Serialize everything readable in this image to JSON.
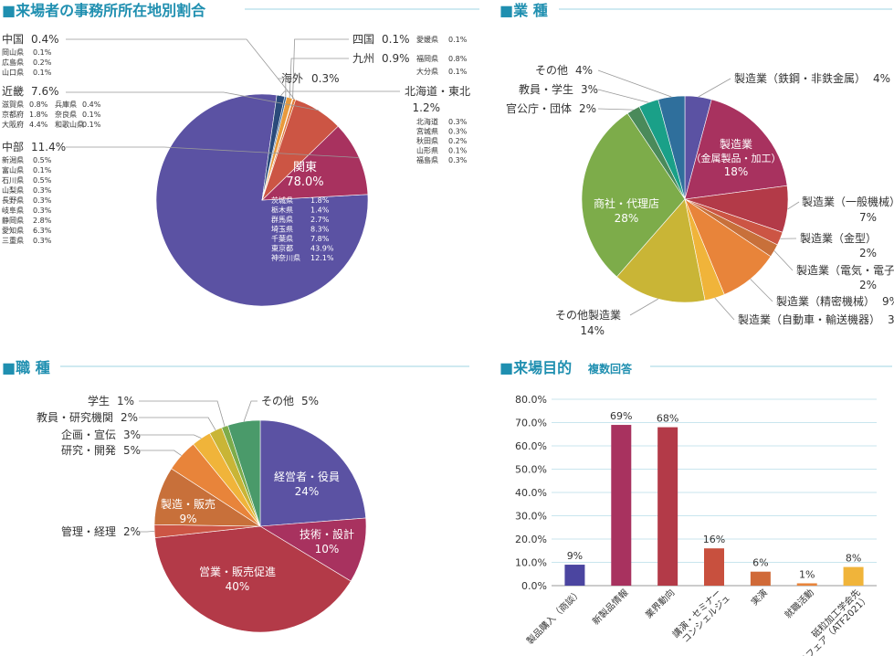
{
  "colors": {
    "accent": "#1f8fb0",
    "rule": "#9fd6e3",
    "text": "#333333"
  },
  "sections": {
    "region": "■来場者の事務所所在地別割合",
    "industry": "■業 種",
    "job": "■職 種",
    "purpose": "■来場目的",
    "purpose_note": "複数回答"
  },
  "chart_data": [
    {
      "id": "region",
      "type": "pie",
      "title": "■来場者の事務所所在地別割合",
      "slices": [
        {
          "label": "関東",
          "value": 78.0,
          "display": "78.0%",
          "color": "#5b52a3",
          "breakdown": [
            {
              "name": "茨城県",
              "value": "1.8%"
            },
            {
              "name": "栃木県",
              "value": "1.4%"
            },
            {
              "name": "群馬県",
              "value": "2.7%"
            },
            {
              "name": "埼玉県",
              "value": "8.3%"
            },
            {
              "name": "千葉県",
              "value": "7.8%"
            },
            {
              "name": "東京都",
              "value": "43.9%"
            },
            {
              "name": "神奈川県",
              "value": "12.1%"
            }
          ]
        },
        {
          "label": "中部",
          "value": 11.4,
          "display": "11.4%",
          "color": "#a8325f",
          "breakdown": [
            {
              "name": "新潟県",
              "value": "0.5%"
            },
            {
              "name": "富山県",
              "value": "0.1%"
            },
            {
              "name": "石川県",
              "value": "0.5%"
            },
            {
              "name": "山梨県",
              "value": "0.3%"
            },
            {
              "name": "長野県",
              "value": "0.3%"
            },
            {
              "name": "岐阜県",
              "value": "0.3%"
            },
            {
              "name": "静岡県",
              "value": "2.8%"
            },
            {
              "name": "愛知県",
              "value": "6.3%"
            },
            {
              "name": "三重県",
              "value": "0.3%"
            }
          ]
        },
        {
          "label": "近畿",
          "value": 7.6,
          "display": "7.6%",
          "color": "#cc5544",
          "breakdown": [
            {
              "name": "滋賀県",
              "value": "0.8%"
            },
            {
              "name": "兵庫県",
              "value": "0.4%"
            },
            {
              "name": "京都府",
              "value": "1.8%"
            },
            {
              "name": "奈良県",
              "value": "0.1%"
            },
            {
              "name": "大阪府",
              "value": "4.4%"
            },
            {
              "name": "和歌山県",
              "value": "0.1%"
            }
          ]
        },
        {
          "label": "中国",
          "value": 0.4,
          "display": "0.4%",
          "color": "#e07a3a",
          "breakdown": [
            {
              "name": "岡山県",
              "value": "0.1%"
            },
            {
              "name": "広島県",
              "value": "0.2%"
            },
            {
              "name": "山口県",
              "value": "0.1%"
            }
          ]
        },
        {
          "label": "四国",
          "value": 0.1,
          "display": "0.1%",
          "color": "#f0b43a",
          "breakdown": [
            {
              "name": "愛媛県",
              "value": "0.1%"
            }
          ]
        },
        {
          "label": "九州",
          "value": 0.9,
          "display": "0.9%",
          "color": "#e89a3c",
          "breakdown": [
            {
              "name": "福岡県",
              "value": "0.8%"
            },
            {
              "name": "大分県",
              "value": "0.1%"
            }
          ]
        },
        {
          "label": "海外",
          "value": 0.3,
          "display": "0.3%",
          "color": "#3a6a9a",
          "breakdown": []
        },
        {
          "label": "北海道・東北",
          "value": 1.2,
          "display": "1.2%",
          "color": "#2a4a7a",
          "breakdown": [
            {
              "name": "北海道",
              "value": "0.3%"
            },
            {
              "name": "宮城県",
              "value": "0.3%"
            },
            {
              "name": "秋田県",
              "value": "0.2%"
            },
            {
              "name": "山形県",
              "value": "0.1%"
            },
            {
              "name": "福島県",
              "value": "0.3%"
            }
          ]
        }
      ]
    },
    {
      "id": "industry",
      "type": "pie",
      "title": "■業 種",
      "slices": [
        {
          "label": "製造業（鉄鋼・非鉄金属）",
          "value": 4,
          "display": "4%",
          "color": "#5b52a3"
        },
        {
          "label": "製造業（金属製品・加工）",
          "value": 18,
          "display": "18%",
          "color": "#a8325f"
        },
        {
          "label": "製造業（一般機械）",
          "value": 7,
          "display": "7%",
          "color": "#b33a48"
        },
        {
          "label": "製造業（金型）",
          "value": 2,
          "display": "2%",
          "color": "#cc5544"
        },
        {
          "label": "製造業（電気・電子）",
          "value": 2,
          "display": "2%",
          "color": "#c8703a"
        },
        {
          "label": "製造業（精密機械）",
          "value": 9,
          "display": "9%",
          "color": "#e8843a"
        },
        {
          "label": "製造業（自動車・輸送機器）",
          "value": 3,
          "display": "3%",
          "color": "#f0b43a"
        },
        {
          "label": "その他製造業",
          "value": 14,
          "display": "14%",
          "color": "#c9b536"
        },
        {
          "label": "商社・代理店",
          "value": 28,
          "display": "28%",
          "color": "#7dac4a"
        },
        {
          "label": "官公庁・団体",
          "value": 2,
          "display": "2%",
          "color": "#4a8a5a"
        },
        {
          "label": "教員・学生",
          "value": 3,
          "display": "3%",
          "color": "#1aa088"
        },
        {
          "label": "その他",
          "value": 4,
          "display": "4%",
          "color": "#2f6f9c"
        }
      ]
    },
    {
      "id": "job",
      "type": "pie",
      "title": "■職 種",
      "slices": [
        {
          "label": "経営者・役員",
          "value": 24,
          "display": "24%",
          "color": "#5b52a3"
        },
        {
          "label": "技術・設計",
          "value": 10,
          "display": "10%",
          "color": "#a8325f"
        },
        {
          "label": "営業・販売促進",
          "value": 40,
          "display": "40%",
          "color": "#b33a48"
        },
        {
          "label": "管理・経理",
          "value": 2,
          "display": "2%",
          "color": "#cc5544"
        },
        {
          "label": "製造・販売",
          "value": 9,
          "display": "9%",
          "color": "#c8703a"
        },
        {
          "label": "研究・開発",
          "value": 5,
          "display": "5%",
          "color": "#e8843a"
        },
        {
          "label": "企画・宣伝",
          "value": 3,
          "display": "3%",
          "color": "#f0b43a"
        },
        {
          "label": "教員・研究機関",
          "value": 2,
          "display": "2%",
          "color": "#c9b536"
        },
        {
          "label": "学生",
          "value": 1,
          "display": "1%",
          "color": "#7dac4a"
        },
        {
          "label": "その他",
          "value": 5,
          "display": "5%",
          "color": "#4a9a6a"
        }
      ]
    },
    {
      "id": "purpose",
      "type": "bar",
      "title": "■来場目的",
      "subtitle": "複数回答",
      "ylim": [
        0,
        80
      ],
      "yticks": [
        "0.0%",
        "10.0%",
        "20.0%",
        "30.0%",
        "40.0%",
        "50.0%",
        "60.0%",
        "70.0%",
        "80.0%"
      ],
      "categories": [
        "製品購入（商談）",
        "新製品情報",
        "業界動向",
        "講演・セミナー／コンシェルジュ",
        "実演",
        "就職活動",
        "砥粒加工学会先進テクノフェア（ATF2021）"
      ],
      "values": [
        9,
        69,
        68,
        16,
        6,
        1,
        8
      ],
      "value_labels": [
        "9%",
        "69%",
        "68%",
        "16%",
        "6%",
        "1%",
        "8%"
      ],
      "colors": [
        "#4b45a0",
        "#a8325f",
        "#b33a48",
        "#c8503e",
        "#d06a38",
        "#e8843a",
        "#f0b43a"
      ],
      "grid": true
    }
  ]
}
